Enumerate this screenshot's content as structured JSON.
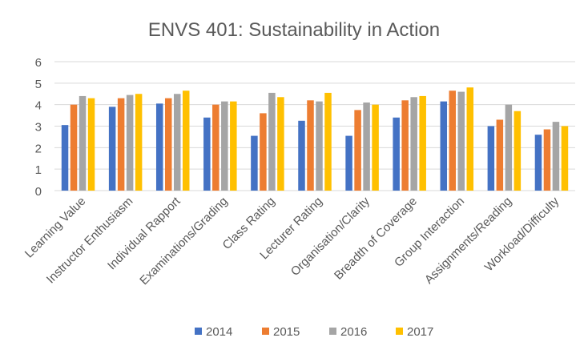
{
  "chart_data": {
    "type": "bar",
    "title": "ENVS 401: Sustainability in Action",
    "xlabel": "",
    "ylabel": "",
    "ylim": [
      0,
      6
    ],
    "yticks": [
      0,
      1,
      2,
      3,
      4,
      5,
      6
    ],
    "grid": true,
    "legend": "bottom",
    "categories": [
      "Learning Value",
      "Instructor Enthusiasm",
      "Individual Rapport",
      "Examinations/Grading",
      "Class Rating",
      "Lecturer Rating",
      "Organisation/Clarity",
      "Breadth of Coverage",
      "Group Interaction",
      "Assignments/Reading",
      "Workload/Difficulty"
    ],
    "series": [
      {
        "name": "2014",
        "color": "#4472C4",
        "values": [
          3.05,
          3.9,
          4.05,
          3.4,
          2.55,
          3.25,
          2.55,
          3.4,
          4.15,
          3.0,
          2.6
        ]
      },
      {
        "name": "2015",
        "color": "#ED7D31",
        "values": [
          4.0,
          4.3,
          4.3,
          4.0,
          3.6,
          4.2,
          3.75,
          4.2,
          4.65,
          3.3,
          2.85
        ]
      },
      {
        "name": "2016",
        "color": "#A5A5A5",
        "values": [
          4.4,
          4.45,
          4.5,
          4.15,
          4.55,
          4.15,
          4.1,
          4.35,
          4.6,
          4.0,
          3.2
        ]
      },
      {
        "name": "2017",
        "color": "#FFC000",
        "values": [
          4.3,
          4.5,
          4.65,
          4.15,
          4.35,
          4.55,
          4.0,
          4.4,
          4.8,
          3.7,
          3.0
        ]
      }
    ],
    "colors": {
      "grid": "#D9D9D9",
      "axis_text": "#595959",
      "title": "#595959"
    }
  }
}
